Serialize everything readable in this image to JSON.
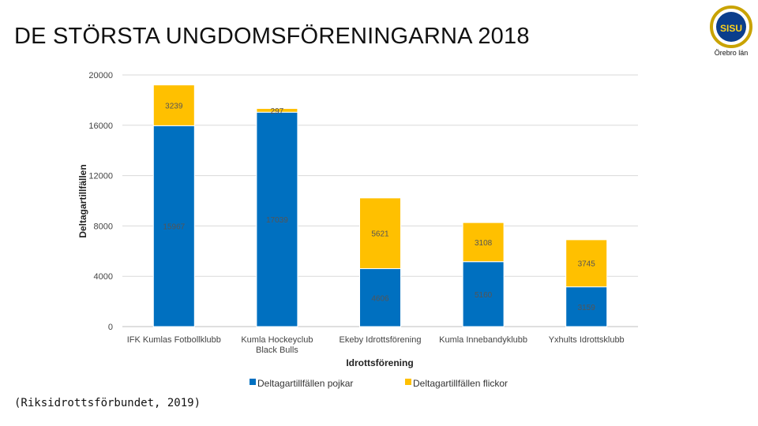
{
  "page": {
    "title": "DE STÖRSTA UNGDOMSFÖRENINGARNA 2018",
    "source": "(Riksidrottsförbundet, 2019)",
    "logo": {
      "emblem_text": "SISU",
      "caption": "Örebro län"
    }
  },
  "colors": {
    "boys": "#0070C0",
    "girls": "#FFC000",
    "grid": "#D9D9D9",
    "axis": "#BFBFBF"
  },
  "chart_data": {
    "type": "bar",
    "stacked": true,
    "title": "",
    "xlabel": "Idrottsförening",
    "ylabel": "Deltagartillfällen",
    "ylim": [
      0,
      20000
    ],
    "yticks": [
      0,
      4000,
      8000,
      12000,
      16000,
      20000
    ],
    "grid": true,
    "legend_position": "bottom",
    "categories": [
      [
        "IFK Kumlas Fotbollklubb"
      ],
      [
        "Kumla Hockeyclub",
        "Black Bulls"
      ],
      [
        "Ekeby Idrottsförening"
      ],
      [
        "Kumla Innebandyklubb"
      ],
      [
        "Yxhults Idrottsklubb"
      ]
    ],
    "series": [
      {
        "name": "Deltagartillfällen pojkar",
        "values": [
          15967,
          17039,
          4606,
          5160,
          3159
        ]
      },
      {
        "name": "Deltagartillfällen flickor",
        "values": [
          3239,
          297,
          5621,
          3108,
          3745
        ]
      }
    ]
  }
}
